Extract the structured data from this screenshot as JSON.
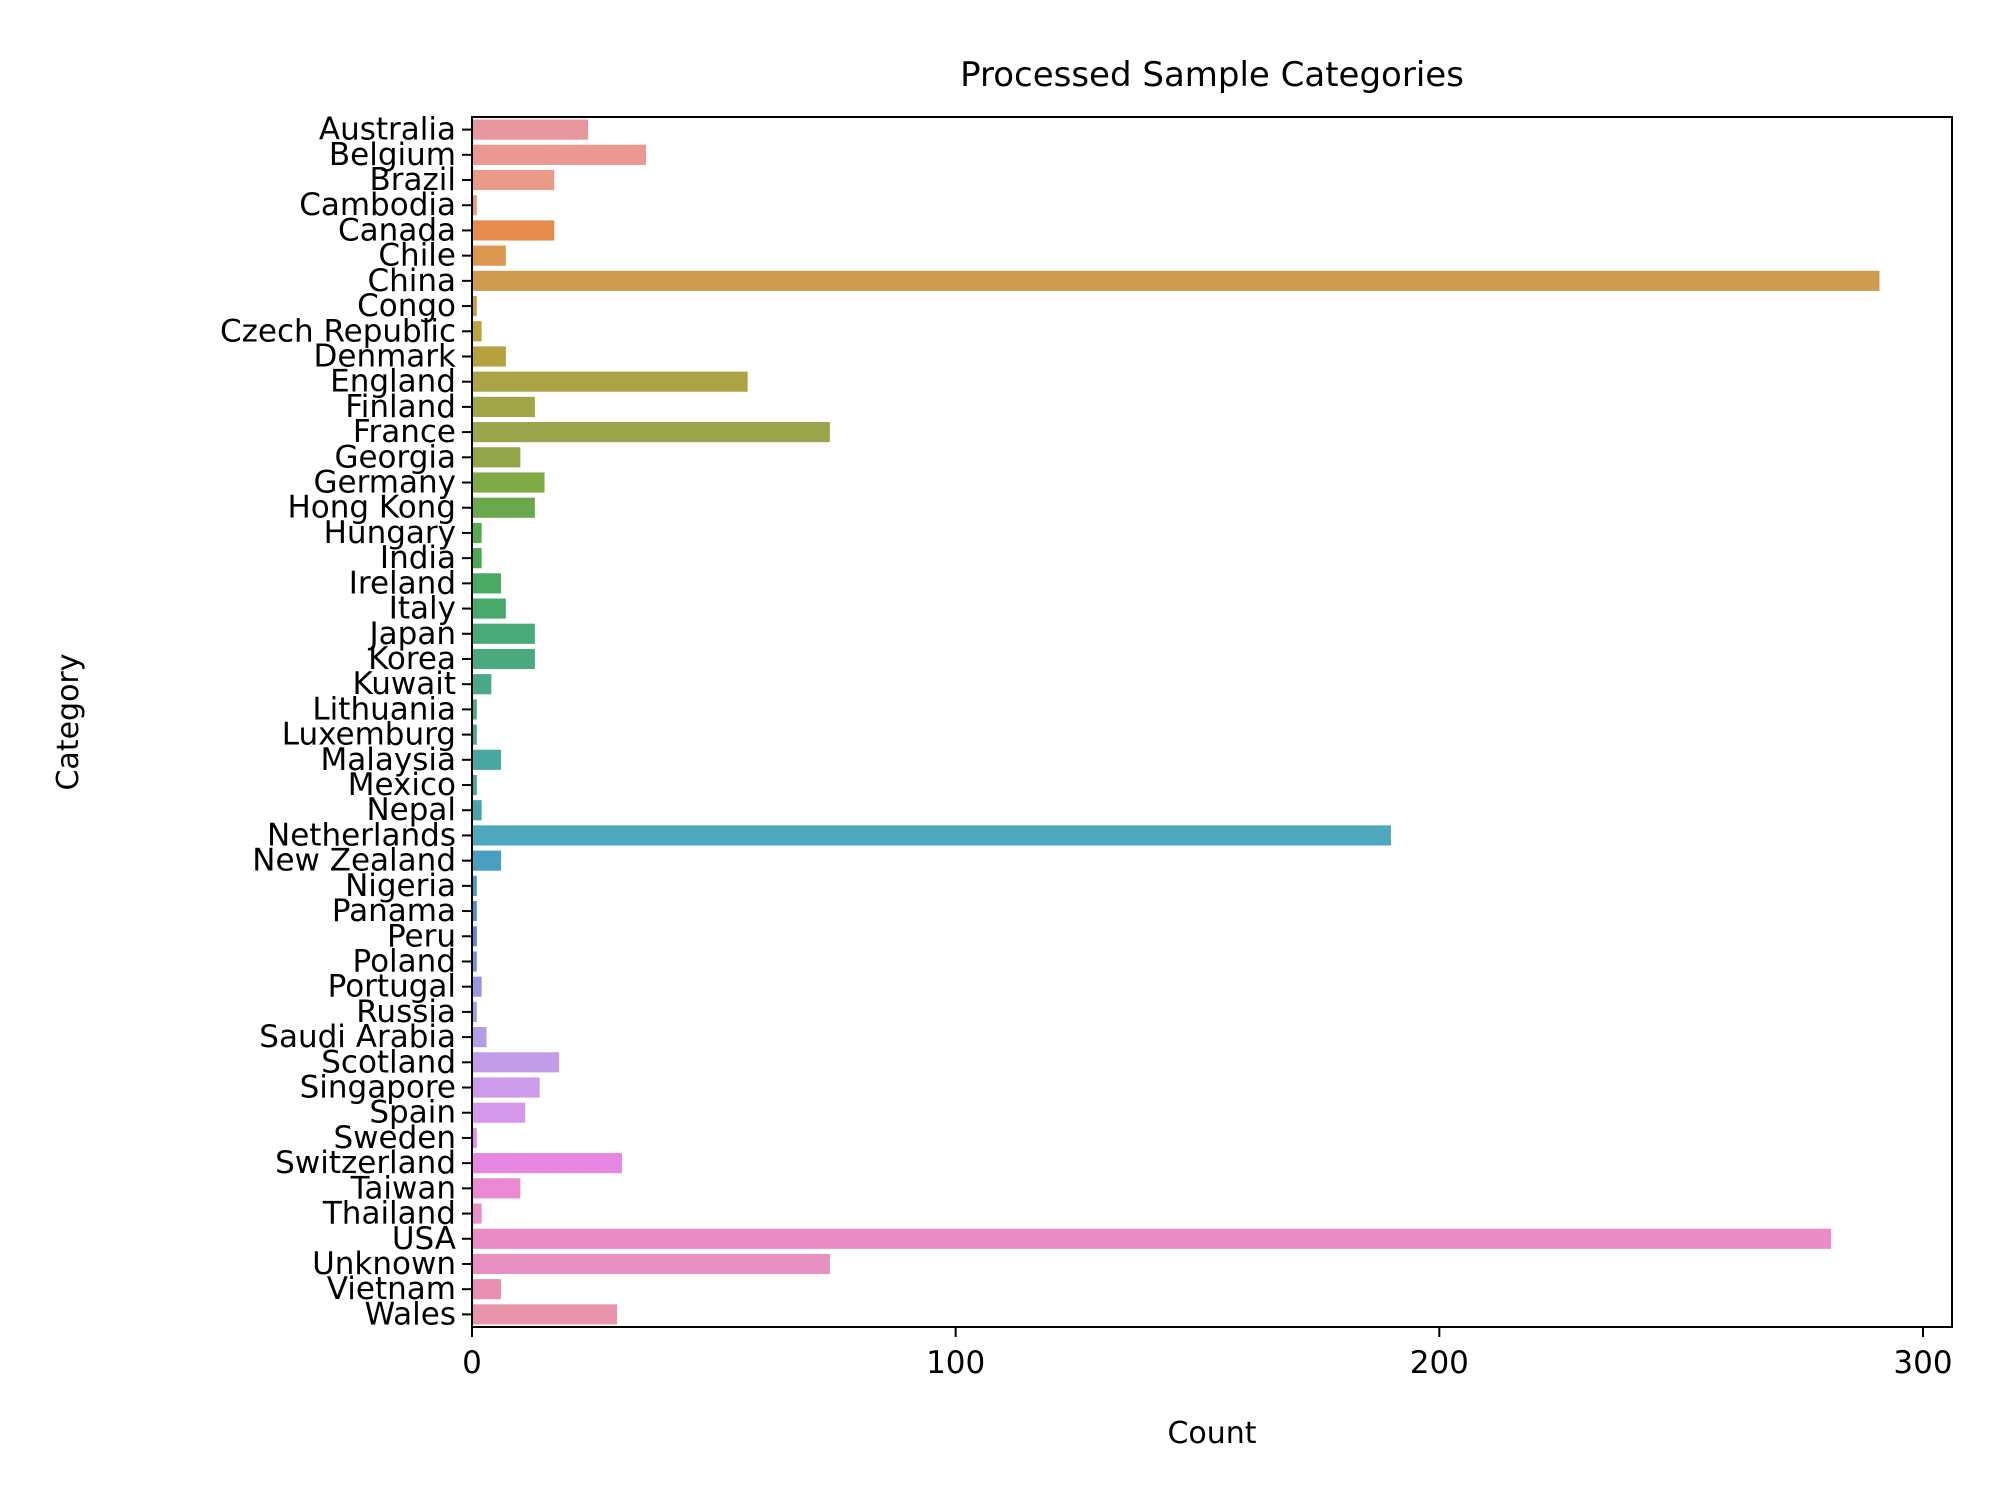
{
  "chart_data": {
    "type": "bar",
    "orientation": "horizontal",
    "title": "Processed Sample Categories",
    "xlabel": "Count",
    "ylabel": "Category",
    "xlim": [
      0,
      306
    ],
    "xticks": [
      0,
      100,
      200,
      300
    ],
    "grid": false,
    "categories": [
      "Australia",
      "Belgium",
      "Brazil",
      "Cambodia",
      "Canada",
      "Chile",
      "China",
      "Congo",
      "Czech Republic",
      "Denmark",
      "England",
      "Finland",
      "France",
      "Georgia",
      "Germany",
      "Hong Kong",
      "Hungary",
      "India",
      "Ireland",
      "Italy",
      "Japan",
      "Korea",
      "Kuwait",
      "Lithuania",
      "Luxemburg",
      "Malaysia",
      "Mexico",
      "Nepal",
      "Netherlands",
      "New Zealand",
      "Nigeria",
      "Panama",
      "Peru",
      "Poland",
      "Portugal",
      "Russia",
      "Saudi Arabia",
      "Scotland",
      "Singapore",
      "Spain",
      "Sweden",
      "Switzerland",
      "Taiwan",
      "Thailand",
      "USA",
      "Unknown",
      "Vietnam",
      "Wales"
    ],
    "values": [
      24,
      36,
      17,
      1,
      17,
      7,
      291,
      1,
      2,
      7,
      57,
      13,
      74,
      10,
      15,
      13,
      2,
      2,
      6,
      7,
      13,
      13,
      4,
      1,
      1,
      6,
      1,
      2,
      190,
      6,
      1,
      1,
      1,
      1,
      2,
      1,
      3,
      18,
      14,
      11,
      1,
      31,
      10,
      2,
      281,
      74,
      6,
      30
    ],
    "colors": [
      "#e9979e",
      "#ea9891",
      "#e99b8a",
      "#e79e7f",
      "#e58c4d",
      "#dc974f",
      "#cf9b4e",
      "#c59e45",
      "#bca33c",
      "#b5a23f",
      "#aba446",
      "#a4a548",
      "#9ba54c",
      "#92a649",
      "#7faa44",
      "#6ba84d",
      "#58ab4f",
      "#4ca952",
      "#4aa963",
      "#47a96c",
      "#48aa78",
      "#4aa97d",
      "#4aa889",
      "#49a890",
      "#48a796",
      "#47a7a0",
      "#47a6a6",
      "#48a5ab",
      "#4ea8bd",
      "#4a9fc0",
      "#4a99c5",
      "#4d91c9",
      "#5a8ad0",
      "#7a90db",
      "#9b95e0",
      "#a79be5",
      "#b19ee7",
      "#c39ce8",
      "#cc9bea",
      "#d698ea",
      "#e090e9",
      "#e787e2",
      "#e98ad2",
      "#e98ecb",
      "#e98bc5",
      "#e990c2",
      "#e98fb4",
      "#e895ab"
    ]
  }
}
